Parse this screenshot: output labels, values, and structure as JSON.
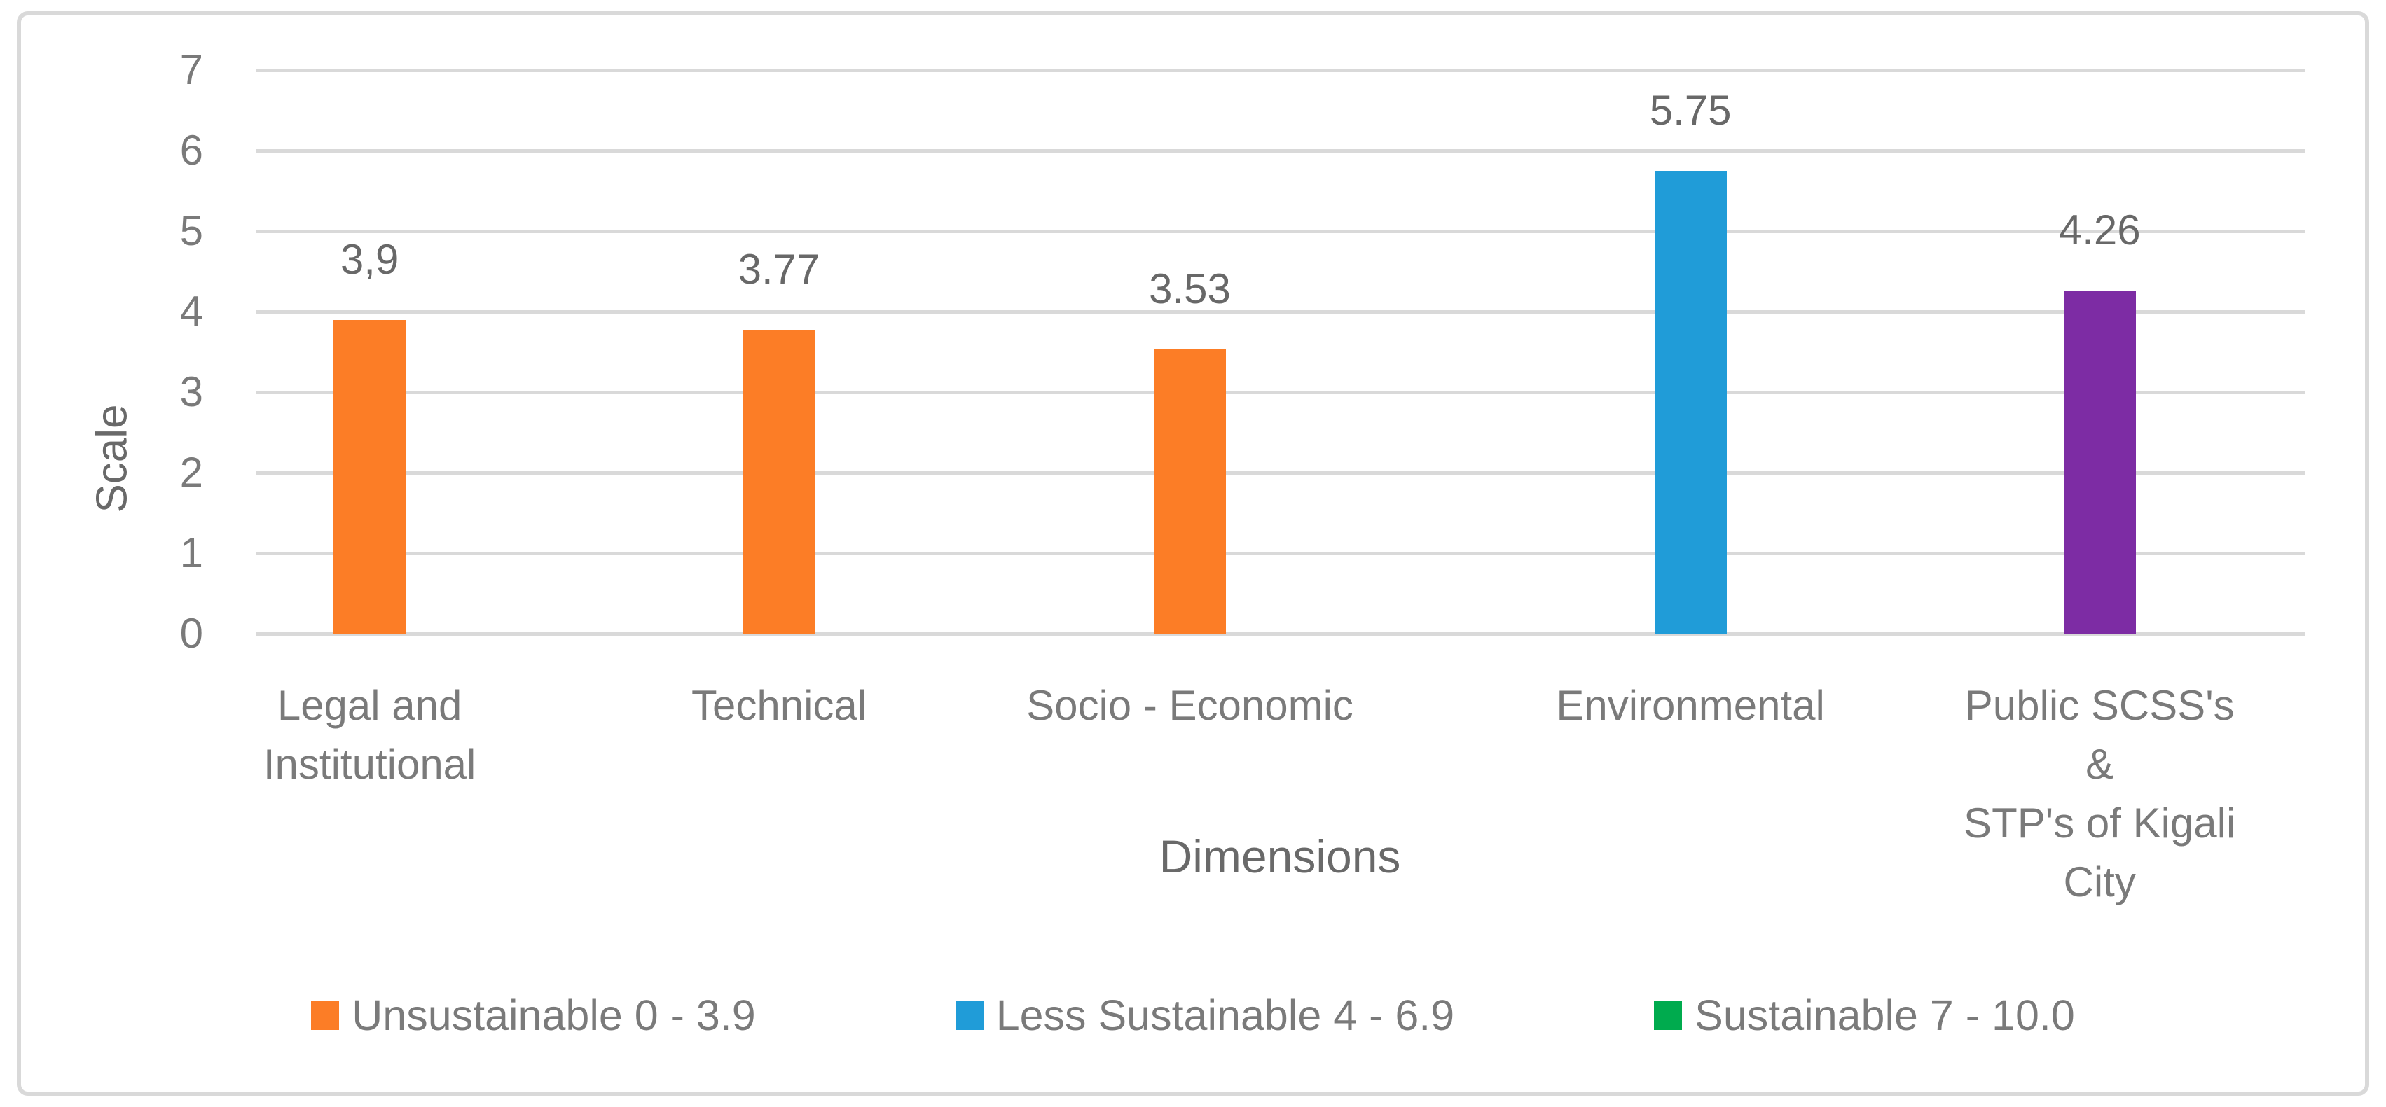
{
  "chart_data": {
    "type": "bar",
    "title": "",
    "xlabel": "Dimensions",
    "ylabel": "Scale",
    "ylim": [
      0,
      7
    ],
    "ytick_interval": 1,
    "yticks": [
      "0",
      "1",
      "2",
      "3",
      "4",
      "5",
      "6",
      "7"
    ],
    "grid": "horizontal gridlines on, light gray",
    "categories": [
      "Legal and Institutional",
      "Technical",
      "Socio - Economic",
      "Environmental",
      "Public SCSS's & STP's of Kigali City"
    ],
    "category_lines": [
      [
        "Legal and",
        "Institutional"
      ],
      [
        "Technical"
      ],
      [
        "Socio - Economic"
      ],
      [
        "Environmental"
      ],
      [
        "Public SCSS's &",
        "STP's of Kigali City"
      ]
    ],
    "values": [
      3.9,
      3.77,
      3.53,
      5.75,
      4.26
    ],
    "value_labels": [
      "3,9",
      "3.77",
      "3.53",
      "5.75",
      "4.26"
    ],
    "bar_colors": [
      "#fc7d26",
      "#fc7d26",
      "#fc7d26",
      "#209cd8",
      "#7d2ca4"
    ],
    "legend_position": "bottom",
    "legend": [
      {
        "label": "Unsustainable 0 - 3.9",
        "color": "#fc7d26"
      },
      {
        "label": "Less Sustainable 4 - 6.9",
        "color": "#209cd8"
      },
      {
        "label": "Sustainable 7 - 10.0",
        "color": "#00ab4e"
      }
    ]
  },
  "colors": {
    "background": "#ffffff",
    "frame_border": "#d9d9d9",
    "gridline": "#d9d9d9",
    "axis_text": "#7a7a7a",
    "data_label_text": "#686868"
  }
}
